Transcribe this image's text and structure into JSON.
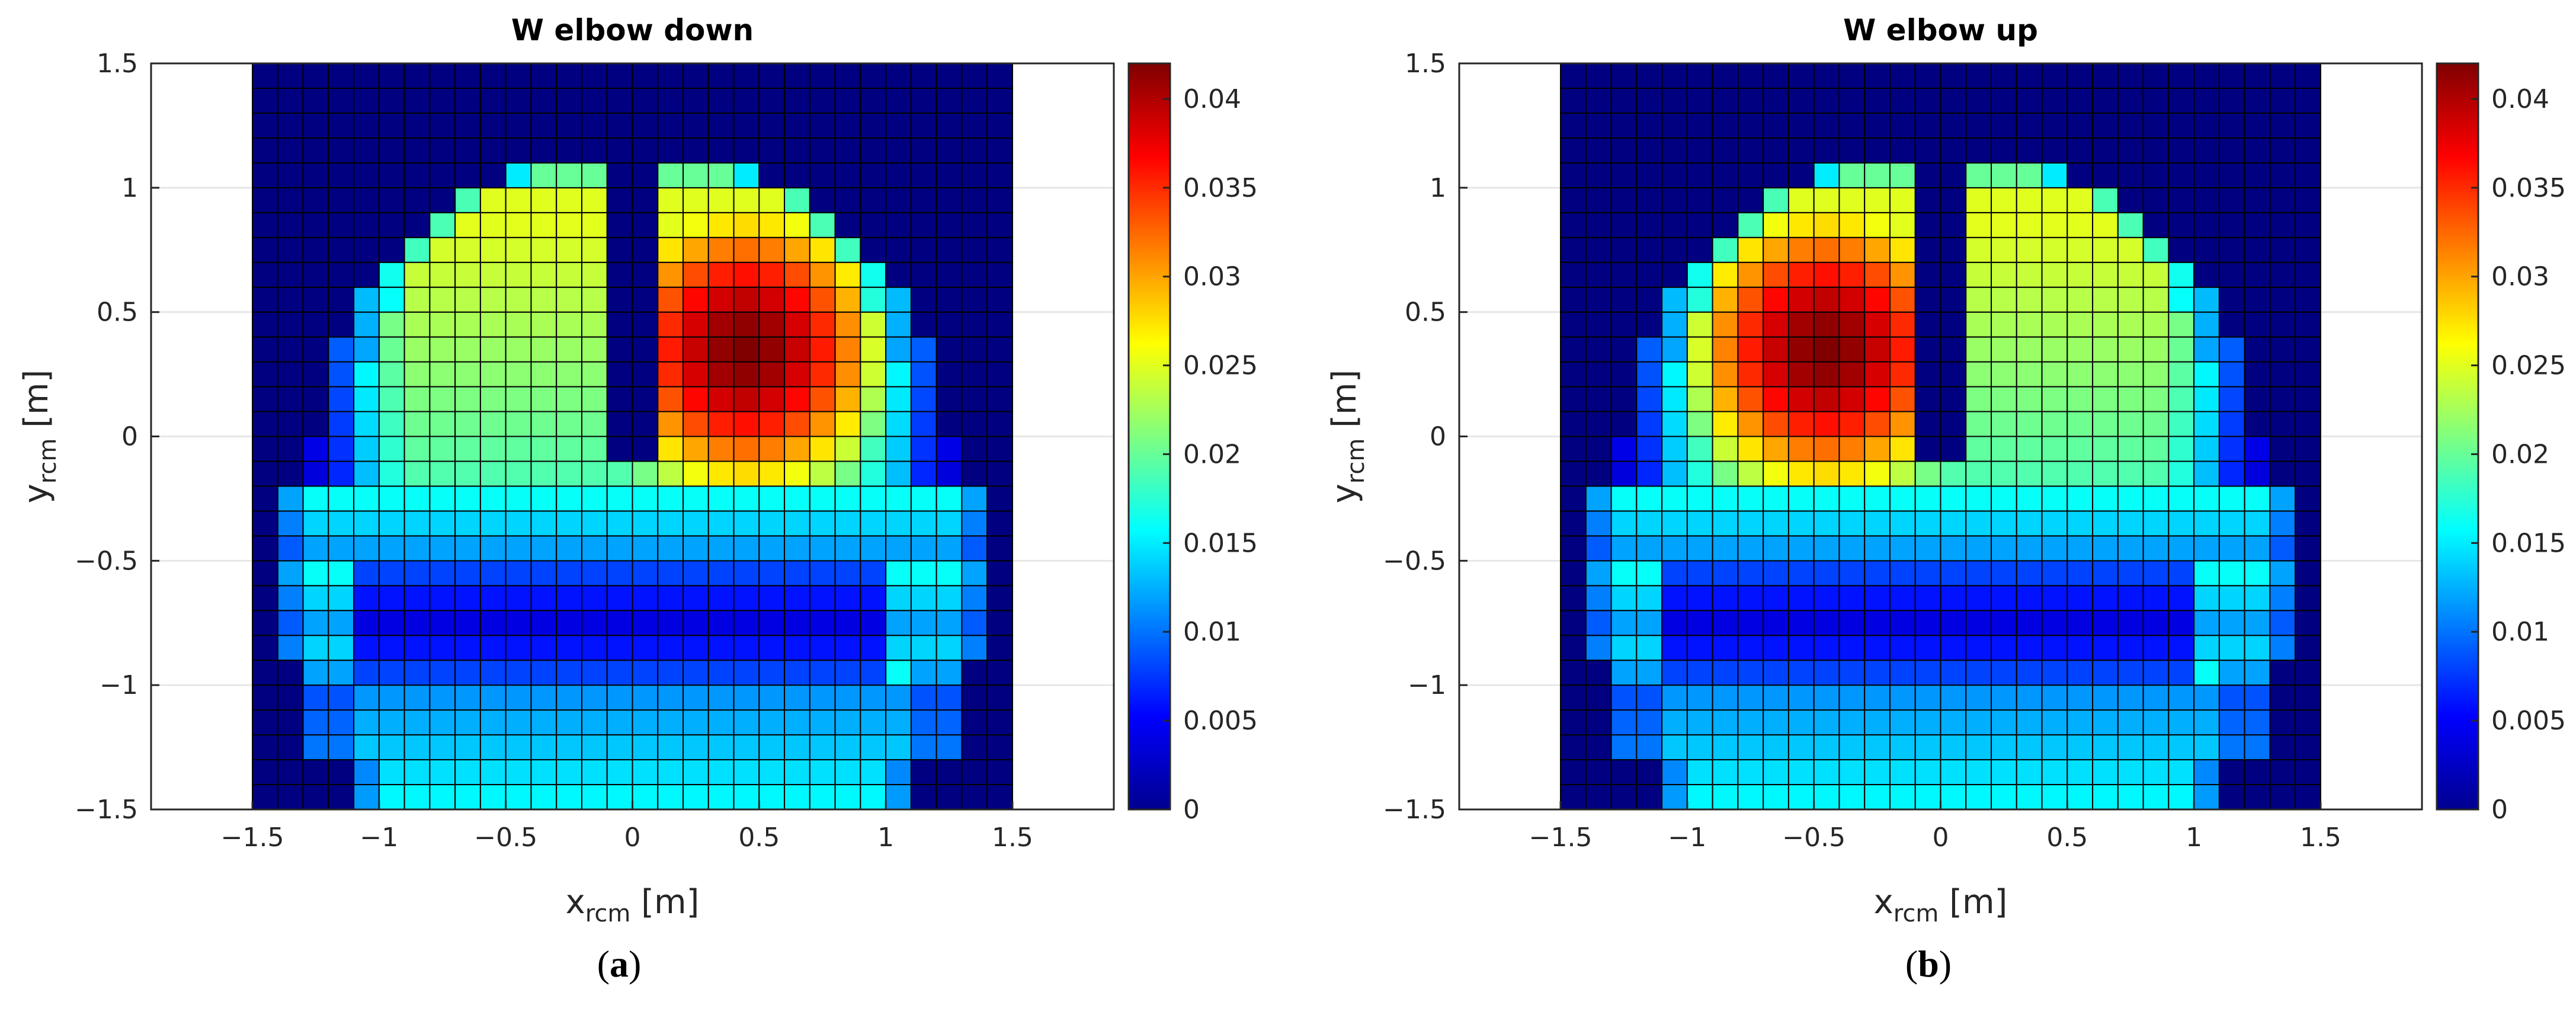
{
  "panels": [
    {
      "id": "a",
      "title": "W elbow down",
      "caption_letter": "a",
      "variant": "down"
    },
    {
      "id": "b",
      "title": "W elbow up",
      "caption_letter": "b",
      "variant": "up"
    }
  ],
  "axes": {
    "xlabel_main": "x",
    "xlabel_sub": "rcm",
    "xlabel_unit": " [m]",
    "ylabel_main": "y",
    "ylabel_sub": "rcm",
    "ylabel_unit": " [m]",
    "xlim": [
      -1.9,
      1.9
    ],
    "ylim": [
      -1.5,
      1.5
    ],
    "xticks": [
      -1.5,
      -1,
      -0.5,
      0,
      0.5,
      1,
      1.5
    ],
    "xtick_labels": [
      "−1.5",
      "−1",
      "−0.5",
      "0",
      "0.5",
      "1",
      "1.5"
    ],
    "yticks": [
      1.5,
      1,
      0.5,
      0,
      -0.5,
      -1,
      -1.5
    ],
    "ytick_labels": [
      "1.5",
      "1",
      "0.5",
      "0",
      "−0.5",
      "−1",
      "−1.5"
    ],
    "grid": true
  },
  "colorbar": {
    "colormap": "jet",
    "range": [
      0,
      0.042
    ],
    "ticks": [
      0,
      0.005,
      0.01,
      0.015,
      0.02,
      0.025,
      0.03,
      0.035,
      0.04
    ],
    "tick_labels": [
      "0",
      "0.005",
      "0.01",
      "0.015",
      "0.02",
      "0.025",
      "0.03",
      "0.035",
      "0.04"
    ]
  },
  "chart_data": [
    {
      "type": "heatmap",
      "title": "W elbow down",
      "x_range": [
        -1.5,
        1.5
      ],
      "y_range": [
        -1.5,
        1.5
      ],
      "grid_cells": [
        30,
        30
      ],
      "value_range": [
        0,
        0.042
      ],
      "peak": {
        "x": 0.45,
        "y": 0.4,
        "value": 0.042
      },
      "notch": {
        "x": [
          -0.05,
          0.1
        ],
        "y": [
          -0.1,
          1.1
        ]
      },
      "description_values": "reachable workspace dome; highest values in upper right quadrant, ~0.015 band at bottom, low ~0.005 band near y=-0.8"
    },
    {
      "type": "heatmap",
      "title": "W elbow up",
      "x_range": [
        -1.5,
        1.5
      ],
      "y_range": [
        -1.5,
        1.5
      ],
      "grid_cells": [
        30,
        30
      ],
      "value_range": [
        0,
        0.042
      ],
      "peak": {
        "x": -0.45,
        "y": 0.4,
        "value": 0.042
      },
      "notch": {
        "x": [
          -0.05,
          0.1
        ],
        "y": [
          -0.1,
          1.1
        ]
      },
      "description_values": "mirror of elbow down; highest values in upper left quadrant"
    }
  ]
}
